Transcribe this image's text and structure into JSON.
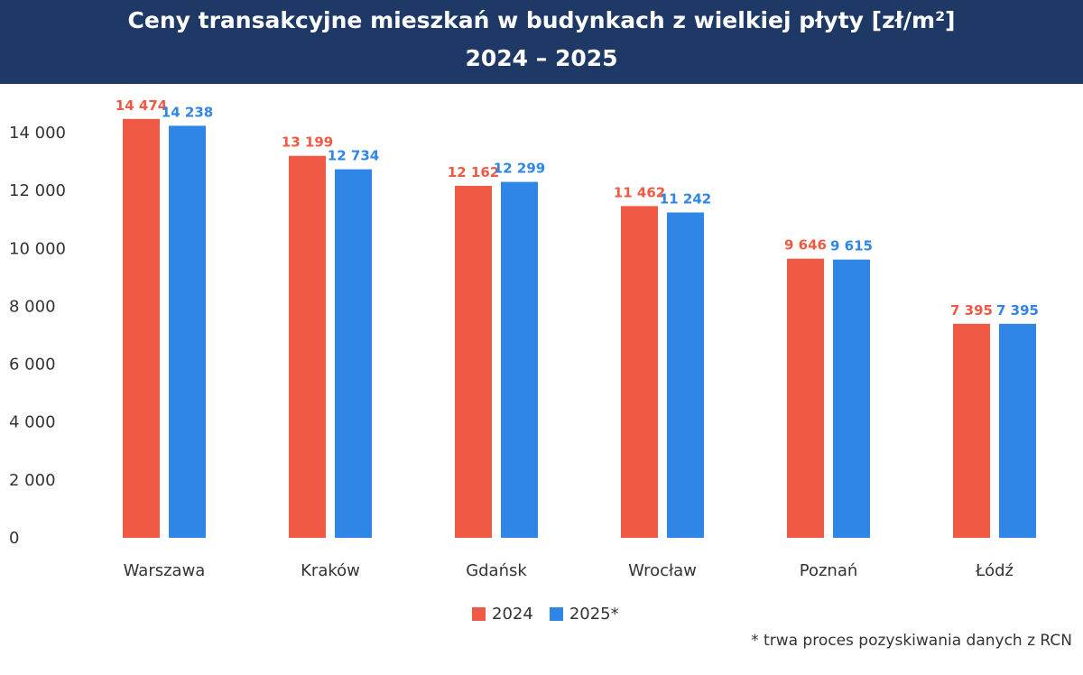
{
  "chart_data": {
    "type": "bar",
    "title": "Ceny transakcyjne mieszkań w budynkach z wielkiej płyty [zł/m²]",
    "subtitle": "2024 – 2025",
    "categories": [
      "Warszawa",
      "Kraków",
      "Gdańsk",
      "Wrocław",
      "Poznań",
      "Łódź"
    ],
    "series": [
      {
        "name": "2024",
        "color": "#f05a44",
        "values": [
          14474,
          13199,
          12162,
          11462,
          9646,
          7395
        ],
        "labels": [
          "14 474",
          "13 199",
          "12 162",
          "11 462",
          "9 646",
          "7 395"
        ]
      },
      {
        "name": "2025*",
        "color": "#2f86e6",
        "values": [
          14238,
          12734,
          12299,
          11242,
          9615,
          7395
        ],
        "labels": [
          "14 238",
          "12 734",
          "12 299",
          "11 242",
          "9 615",
          "7 395"
        ]
      }
    ],
    "yticks": [
      "0",
      "2 000",
      "4 000",
      "6 000",
      "8 000",
      "10 000",
      "12 000",
      "14 000"
    ],
    "ylim": [
      0,
      14000
    ],
    "grid": false,
    "legend": "bottom-center",
    "footnote": "* trwa proces pozyskiwania danych z RCN"
  }
}
